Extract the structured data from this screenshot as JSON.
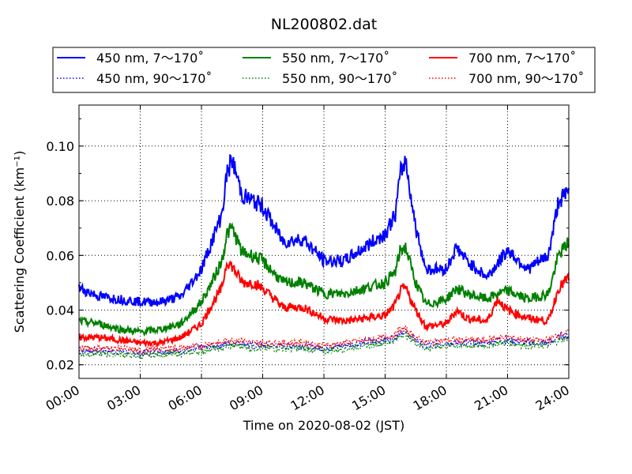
{
  "chart_data": {
    "type": "line",
    "title": "NL200802.dat",
    "xlabel": "Time on 2020-08-02 (JST)",
    "ylabel": "Scattering Coefficient (km⁻¹)",
    "xlim": [
      "00:00",
      "24:00"
    ],
    "ylim": [
      0.015,
      0.115
    ],
    "x_ticks": [
      "00:00",
      "03:00",
      "06:00",
      "09:00",
      "12:00",
      "15:00",
      "18:00",
      "21:00",
      "24:00"
    ],
    "y_ticks": [
      "0.02",
      "0.04",
      "0.06",
      "0.08",
      "0.10"
    ],
    "grid": true,
    "legend_position": "top",
    "x": [
      "00:00",
      "01:00",
      "02:00",
      "03:00",
      "04:00",
      "05:00",
      "06:00",
      "06:30",
      "07:00",
      "07:15",
      "07:30",
      "08:00",
      "08:30",
      "09:00",
      "10:00",
      "11:00",
      "12:00",
      "13:00",
      "14:00",
      "15:00",
      "15:30",
      "15:45",
      "16:00",
      "16:30",
      "17:00",
      "18:00",
      "18:30",
      "19:00",
      "20:00",
      "20:30",
      "21:00",
      "22:00",
      "23:00",
      "23:30",
      "24:00"
    ],
    "series": [
      {
        "name": "450 nm, 7～170˚",
        "color": "#0000ff",
        "style": "solid",
        "values": [
          0.048,
          0.045,
          0.044,
          0.043,
          0.043,
          0.045,
          0.055,
          0.065,
          0.075,
          0.09,
          0.095,
          0.082,
          0.08,
          0.078,
          0.065,
          0.066,
          0.058,
          0.058,
          0.063,
          0.068,
          0.075,
          0.09,
          0.095,
          0.07,
          0.055,
          0.055,
          0.063,
          0.058,
          0.052,
          0.057,
          0.062,
          0.055,
          0.06,
          0.08,
          0.083
        ]
      },
      {
        "name": "550 nm, 7～170˚",
        "color": "#008000",
        "style": "solid",
        "values": [
          0.036,
          0.035,
          0.033,
          0.032,
          0.033,
          0.035,
          0.043,
          0.05,
          0.058,
          0.068,
          0.07,
          0.061,
          0.06,
          0.058,
          0.05,
          0.05,
          0.046,
          0.046,
          0.048,
          0.05,
          0.054,
          0.062,
          0.063,
          0.05,
          0.042,
          0.044,
          0.048,
          0.046,
          0.044,
          0.046,
          0.047,
          0.044,
          0.046,
          0.06,
          0.065
        ]
      },
      {
        "name": "700 nm, 7～170˚",
        "color": "#ff0000",
        "style": "solid",
        "values": [
          0.03,
          0.03,
          0.029,
          0.028,
          0.028,
          0.03,
          0.035,
          0.042,
          0.048,
          0.058,
          0.056,
          0.05,
          0.05,
          0.048,
          0.041,
          0.041,
          0.037,
          0.036,
          0.037,
          0.038,
          0.042,
          0.047,
          0.048,
          0.04,
          0.034,
          0.035,
          0.04,
          0.037,
          0.036,
          0.044,
          0.04,
          0.037,
          0.036,
          0.048,
          0.052
        ]
      },
      {
        "name": "450 nm, 90～170˚",
        "color": "#0000ff",
        "style": "dotted",
        "values": [
          0.025,
          0.025,
          0.025,
          0.024,
          0.025,
          0.025,
          0.026,
          0.027,
          0.027,
          0.028,
          0.028,
          0.028,
          0.027,
          0.027,
          0.027,
          0.027,
          0.026,
          0.027,
          0.028,
          0.029,
          0.03,
          0.032,
          0.032,
          0.029,
          0.027,
          0.028,
          0.028,
          0.028,
          0.028,
          0.029,
          0.029,
          0.028,
          0.028,
          0.03,
          0.031
        ]
      },
      {
        "name": "550 nm, 90～170˚",
        "color": "#008000",
        "style": "dotted",
        "values": [
          0.024,
          0.024,
          0.024,
          0.023,
          0.024,
          0.024,
          0.025,
          0.026,
          0.026,
          0.027,
          0.027,
          0.027,
          0.026,
          0.026,
          0.026,
          0.026,
          0.025,
          0.026,
          0.027,
          0.028,
          0.029,
          0.031,
          0.031,
          0.028,
          0.026,
          0.027,
          0.027,
          0.027,
          0.027,
          0.028,
          0.028,
          0.027,
          0.027,
          0.029,
          0.03
        ]
      },
      {
        "name": "700 nm, 90～170˚",
        "color": "#ff0000",
        "style": "dotted",
        "values": [
          0.026,
          0.026,
          0.026,
          0.025,
          0.026,
          0.026,
          0.027,
          0.028,
          0.028,
          0.029,
          0.029,
          0.029,
          0.028,
          0.028,
          0.028,
          0.028,
          0.027,
          0.028,
          0.029,
          0.03,
          0.031,
          0.033,
          0.033,
          0.03,
          0.028,
          0.029,
          0.029,
          0.029,
          0.029,
          0.03,
          0.03,
          0.029,
          0.029,
          0.031,
          0.032
        ]
      }
    ]
  }
}
